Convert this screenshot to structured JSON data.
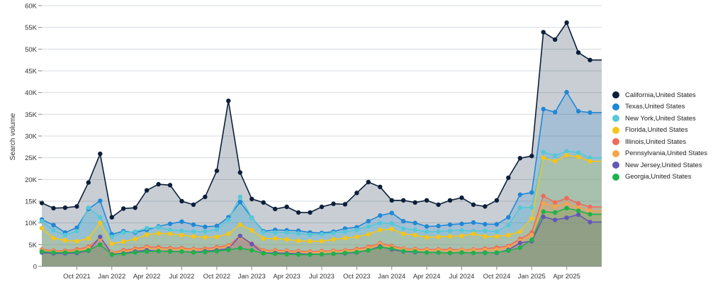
{
  "chart_data": {
    "type": "area",
    "ylabel": "Search volume",
    "ylim": [
      0,
      60000
    ],
    "y_ticks": [
      "0",
      "5K",
      "10K",
      "15K",
      "20K",
      "25K",
      "30K",
      "35K",
      "40K",
      "45K",
      "50K",
      "55K",
      "60K"
    ],
    "y_tick_values": [
      0,
      5000,
      10000,
      15000,
      20000,
      25000,
      30000,
      35000,
      40000,
      45000,
      50000,
      55000,
      60000
    ],
    "x_ticks": [
      "Oct 2021",
      "Jan 2022",
      "Apr 2022",
      "Jul 2022",
      "Oct 2022",
      "Jan 2023",
      "Apr 2023",
      "Jul 2023",
      "Oct 2023",
      "Jan 2024",
      "Apr 2024",
      "Jul 2024",
      "Oct 2024",
      "Jan 2025",
      "Apr 2025"
    ],
    "x_tick_months": [
      3,
      6,
      9,
      12,
      15,
      18,
      21,
      24,
      27,
      30,
      33,
      36,
      39,
      42,
      45
    ],
    "x": [
      "Jul 2021",
      "Aug 2021",
      "Sep 2021",
      "Oct 2021",
      "Nov 2021",
      "Dec 2021",
      "Jan 2022",
      "Feb 2022",
      "Mar 2022",
      "Apr 2022",
      "May 2022",
      "Jun 2022",
      "Jul 2022",
      "Aug 2022",
      "Sep 2022",
      "Oct 2022",
      "Nov 2022",
      "Dec 2022",
      "Jan 2023",
      "Feb 2023",
      "Mar 2023",
      "Apr 2023",
      "May 2023",
      "Jun 2023",
      "Jul 2023",
      "Aug 2023",
      "Sep 2023",
      "Oct 2023",
      "Nov 2023",
      "Dec 2023",
      "Jan 2024",
      "Feb 2024",
      "Mar 2024",
      "Apr 2024",
      "May 2024",
      "Jun 2024",
      "Jul 2024",
      "Aug 2024",
      "Sep 2024",
      "Oct 2024",
      "Nov 2024",
      "Dec 2024",
      "Jan 2025",
      "Feb 2025",
      "Mar 2025",
      "Apr 2025",
      "May 2025",
      "Jun 2025",
      "Jul 2025"
    ],
    "grid": true,
    "legend_position": "right",
    "series": [
      {
        "name": "California,United States",
        "color": "#0b1f3a",
        "values": [
          14600,
          13400,
          13500,
          13800,
          19300,
          25900,
          11300,
          13300,
          13500,
          17500,
          18900,
          18700,
          15000,
          14200,
          16000,
          22000,
          38100,
          21600,
          15500,
          14700,
          13200,
          13700,
          12400,
          12400,
          13700,
          14400,
          14300,
          16900,
          19400,
          18300,
          15200,
          15200,
          14700,
          15200,
          14200,
          15200,
          15800,
          14200,
          13800,
          15200,
          20400,
          24900,
          25400,
          53900,
          52200,
          56100,
          49200,
          47500,
          47500
        ]
      },
      {
        "name": "Texas,United States",
        "color": "#1e88d6",
        "values": [
          10800,
          9500,
          7800,
          8900,
          13200,
          15100,
          7400,
          8100,
          7800,
          8400,
          9200,
          9800,
          10300,
          9600,
          9100,
          9300,
          11300,
          14800,
          11200,
          8100,
          8400,
          8300,
          8200,
          7800,
          7700,
          8000,
          8700,
          9000,
          10400,
          11700,
          12300,
          10400,
          10000,
          9200,
          9300,
          9600,
          9800,
          10100,
          9700,
          9700,
          11300,
          16500,
          17000,
          36200,
          35500,
          40100,
          35700,
          35400,
          35400
        ]
      },
      {
        "name": "New York,United States",
        "color": "#56c8d8",
        "values": [
          10400,
          8300,
          7200,
          8100,
          13500,
          11300,
          6800,
          7800,
          8000,
          8800,
          9000,
          8400,
          8200,
          8000,
          8000,
          8500,
          10800,
          16000,
          11200,
          7900,
          7800,
          7800,
          7600,
          7300,
          7400,
          7700,
          8000,
          8400,
          9200,
          10000,
          9900,
          8700,
          8400,
          8000,
          8000,
          8200,
          8300,
          8100,
          8200,
          8000,
          9500,
          13500,
          13600,
          26300,
          25500,
          26500,
          26200,
          25000,
          25000
        ]
      },
      {
        "name": "Florida,United States",
        "color": "#f5c518",
        "values": [
          8800,
          6500,
          6000,
          5800,
          6400,
          10000,
          5200,
          5700,
          6300,
          7300,
          7600,
          7500,
          7200,
          6900,
          6700,
          6800,
          7500,
          9600,
          8300,
          6400,
          6400,
          6200,
          5900,
          5800,
          5800,
          6200,
          6500,
          6800,
          7400,
          8400,
          8600,
          7500,
          7200,
          6700,
          6800,
          6900,
          7000,
          7500,
          6900,
          6900,
          7200,
          8000,
          11000,
          25000,
          24200,
          25600,
          25200,
          24200,
          24200
        ]
      },
      {
        "name": "Illinois,United States",
        "color": "#ef6a5a",
        "values": [
          3900,
          3600,
          3600,
          3900,
          4500,
          6500,
          3200,
          3700,
          4100,
          4500,
          4400,
          4200,
          4200,
          4000,
          4100,
          4400,
          4800,
          7000,
          5200,
          3700,
          3700,
          3600,
          3500,
          3400,
          3500,
          3600,
          3700,
          4000,
          4500,
          5300,
          4700,
          4100,
          4000,
          3900,
          3900,
          3900,
          3800,
          3900,
          4100,
          4300,
          4700,
          6300,
          7800,
          16200,
          14700,
          15700,
          14500,
          13700,
          13700
        ]
      },
      {
        "name": "Pennsylvania,United States",
        "color": "#f2a54a",
        "values": [
          3700,
          3400,
          3400,
          3600,
          4200,
          6400,
          3100,
          3400,
          3800,
          4200,
          4000,
          3900,
          3900,
          3800,
          3800,
          4100,
          4600,
          6800,
          5000,
          3500,
          3500,
          3400,
          3300,
          3200,
          3300,
          3400,
          3500,
          3700,
          4200,
          5100,
          4400,
          3900,
          3800,
          3700,
          3700,
          3600,
          3700,
          3700,
          3800,
          3900,
          4400,
          5900,
          7200,
          14500,
          13800,
          14500,
          13500,
          12800,
          12800
        ]
      },
      {
        "name": "New Jersey,United States",
        "color": "#6357b8",
        "values": [
          3200,
          3000,
          3000,
          3100,
          3600,
          6800,
          2800,
          3000,
          3400,
          3700,
          3500,
          3500,
          3400,
          3300,
          3500,
          3700,
          4100,
          7000,
          5100,
          3100,
          3100,
          3000,
          2900,
          2800,
          2800,
          2900,
          3000,
          3200,
          3700,
          4600,
          3900,
          3400,
          3300,
          3200,
          3200,
          3100,
          3200,
          3100,
          3200,
          3100,
          3800,
          5400,
          5800,
          11400,
          10700,
          11200,
          11900,
          10200,
          10200
        ]
      },
      {
        "name": "Georgia,United States",
        "color": "#1fb24a",
        "values": [
          3400,
          3200,
          3200,
          3300,
          3700,
          5000,
          2700,
          2900,
          3200,
          3400,
          3500,
          3400,
          3400,
          3200,
          3300,
          3500,
          3800,
          4200,
          3700,
          3000,
          2900,
          2800,
          2700,
          2700,
          2800,
          2900,
          3100,
          3300,
          3700,
          4400,
          4100,
          3500,
          3400,
          3200,
          3200,
          3100,
          3200,
          3100,
          3100,
          3200,
          3600,
          4300,
          6100,
          12600,
          12400,
          13400,
          12800,
          12000,
          12000
        ]
      }
    ]
  }
}
